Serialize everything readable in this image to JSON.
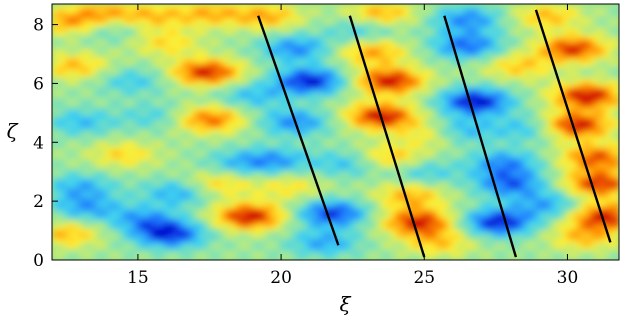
{
  "chart_data": {
    "type": "heatmap",
    "title": "",
    "xlabel": "ξ",
    "ylabel": "ζ",
    "xlim": [
      12,
      31.8
    ],
    "ylim": [
      0,
      8.7
    ],
    "xticks": [
      15,
      20,
      25,
      30
    ],
    "yticks": [
      0,
      2,
      4,
      6,
      8
    ],
    "xtick_labels": [
      "15",
      "20",
      "25",
      "30"
    ],
    "ytick_labels": [
      "0",
      "2",
      "4",
      "6",
      "8"
    ],
    "grid": false,
    "legend": "none",
    "colormap": [
      "#0000cc",
      "#1e7bff",
      "#3fd2f0",
      "#9ee89a",
      "#ffee33",
      "#ff8c00",
      "#cc0000"
    ],
    "background_color": "#8fdf85",
    "fronts": [
      {
        "x": [
          19.2,
          22.0
        ],
        "y": [
          8.3,
          0.5
        ]
      },
      {
        "x": [
          22.4,
          25.0
        ],
        "y": [
          8.3,
          0.1
        ]
      },
      {
        "x": [
          25.7,
          28.2
        ],
        "y": [
          8.3,
          0.1
        ]
      },
      {
        "x": [
          28.9,
          31.5
        ],
        "y": [
          8.5,
          0.6
        ]
      }
    ],
    "features": [
      {
        "x": 12.6,
        "y": 8.1,
        "amp": 0.55
      },
      {
        "x": 13.8,
        "y": 8.4,
        "amp": 0.5
      },
      {
        "x": 15.5,
        "y": 8.3,
        "amp": 0.45
      },
      {
        "x": 17.5,
        "y": 8.4,
        "amp": 0.5
      },
      {
        "x": 19.5,
        "y": 8.3,
        "amp": 0.55
      },
      {
        "x": 20.5,
        "y": 7.2,
        "amp": -0.6
      },
      {
        "x": 21.0,
        "y": 6.1,
        "amp": -0.95
      },
      {
        "x": 20.5,
        "y": 4.7,
        "amp": -0.6
      },
      {
        "x": 19.8,
        "y": 3.4,
        "amp": -0.5
      },
      {
        "x": 21.8,
        "y": 1.6,
        "amp": -0.85
      },
      {
        "x": 21.5,
        "y": 0.6,
        "amp": -0.5
      },
      {
        "x": 23.5,
        "y": 8.4,
        "amp": 0.55
      },
      {
        "x": 23.2,
        "y": 7.1,
        "amp": 0.6
      },
      {
        "x": 23.8,
        "y": 6.1,
        "amp": 1.0
      },
      {
        "x": 23.5,
        "y": 4.9,
        "amp": 1.0
      },
      {
        "x": 23.8,
        "y": 3.5,
        "amp": 0.5
      },
      {
        "x": 24.5,
        "y": 2.2,
        "amp": 0.55
      },
      {
        "x": 24.8,
        "y": 1.3,
        "amp": 0.95
      },
      {
        "x": 25.5,
        "y": 0.6,
        "amp": 0.45
      },
      {
        "x": 26.5,
        "y": 8.2,
        "amp": -0.6
      },
      {
        "x": 26.5,
        "y": 7.3,
        "amp": -0.7
      },
      {
        "x": 26.8,
        "y": 5.4,
        "amp": -1.0
      },
      {
        "x": 26.2,
        "y": 4.4,
        "amp": -0.55
      },
      {
        "x": 27.8,
        "y": 3.3,
        "amp": -0.6
      },
      {
        "x": 28.0,
        "y": 2.6,
        "amp": -0.7
      },
      {
        "x": 27.6,
        "y": 1.3,
        "amp": -0.95
      },
      {
        "x": 29.3,
        "y": 8.3,
        "amp": 0.5
      },
      {
        "x": 30.2,
        "y": 7.2,
        "amp": 0.9
      },
      {
        "x": 30.7,
        "y": 5.6,
        "amp": 1.0
      },
      {
        "x": 30.3,
        "y": 4.6,
        "amp": 1.0
      },
      {
        "x": 31.0,
        "y": 3.5,
        "amp": 0.8
      },
      {
        "x": 31.1,
        "y": 2.6,
        "amp": 0.9
      },
      {
        "x": 31.3,
        "y": 1.5,
        "amp": 0.95
      },
      {
        "x": 30.6,
        "y": 0.8,
        "amp": 0.5
      },
      {
        "x": 17.4,
        "y": 6.4,
        "amp": 0.95
      },
      {
        "x": 17.5,
        "y": 4.8,
        "amp": 0.75
      },
      {
        "x": 18.9,
        "y": 1.5,
        "amp": 1.0
      },
      {
        "x": 17.8,
        "y": 2.6,
        "amp": 0.45
      },
      {
        "x": 16.1,
        "y": 0.9,
        "amp": -0.9
      },
      {
        "x": 15.2,
        "y": 1.4,
        "amp": -0.5
      },
      {
        "x": 16.4,
        "y": 2.3,
        "amp": -0.5
      },
      {
        "x": 13.0,
        "y": 2.5,
        "amp": -0.45
      },
      {
        "x": 13.2,
        "y": 1.8,
        "amp": -0.5
      },
      {
        "x": 12.5,
        "y": 0.9,
        "amp": 0.5
      },
      {
        "x": 12.8,
        "y": 6.6,
        "amp": 0.5
      },
      {
        "x": 13.0,
        "y": 4.7,
        "amp": -0.4
      },
      {
        "x": 14.5,
        "y": 3.6,
        "amp": 0.4
      },
      {
        "x": 14.8,
        "y": 6.1,
        "amp": -0.35
      },
      {
        "x": 15.6,
        "y": 4.9,
        "amp": -0.3
      },
      {
        "x": 16.0,
        "y": 7.4,
        "amp": 0.4
      },
      {
        "x": 19.0,
        "y": 5.6,
        "amp": -0.4
      },
      {
        "x": 18.5,
        "y": 3.3,
        "amp": -0.35
      },
      {
        "x": 22.3,
        "y": 3.3,
        "amp": -0.4
      },
      {
        "x": 22.8,
        "y": 7.8,
        "amp": -0.35
      },
      {
        "x": 25.3,
        "y": 4.3,
        "amp": 0.45
      },
      {
        "x": 28.3,
        "y": 6.6,
        "amp": 0.45
      },
      {
        "x": 28.6,
        "y": 4.5,
        "amp": -0.4
      },
      {
        "x": 29.3,
        "y": 1.9,
        "amp": -0.5
      },
      {
        "x": 25.0,
        "y": 3.0,
        "amp": -0.35
      },
      {
        "x": 20.3,
        "y": 2.5,
        "amp": 0.35
      },
      {
        "x": 14.0,
        "y": 7.9,
        "amp": -0.3
      }
    ]
  }
}
